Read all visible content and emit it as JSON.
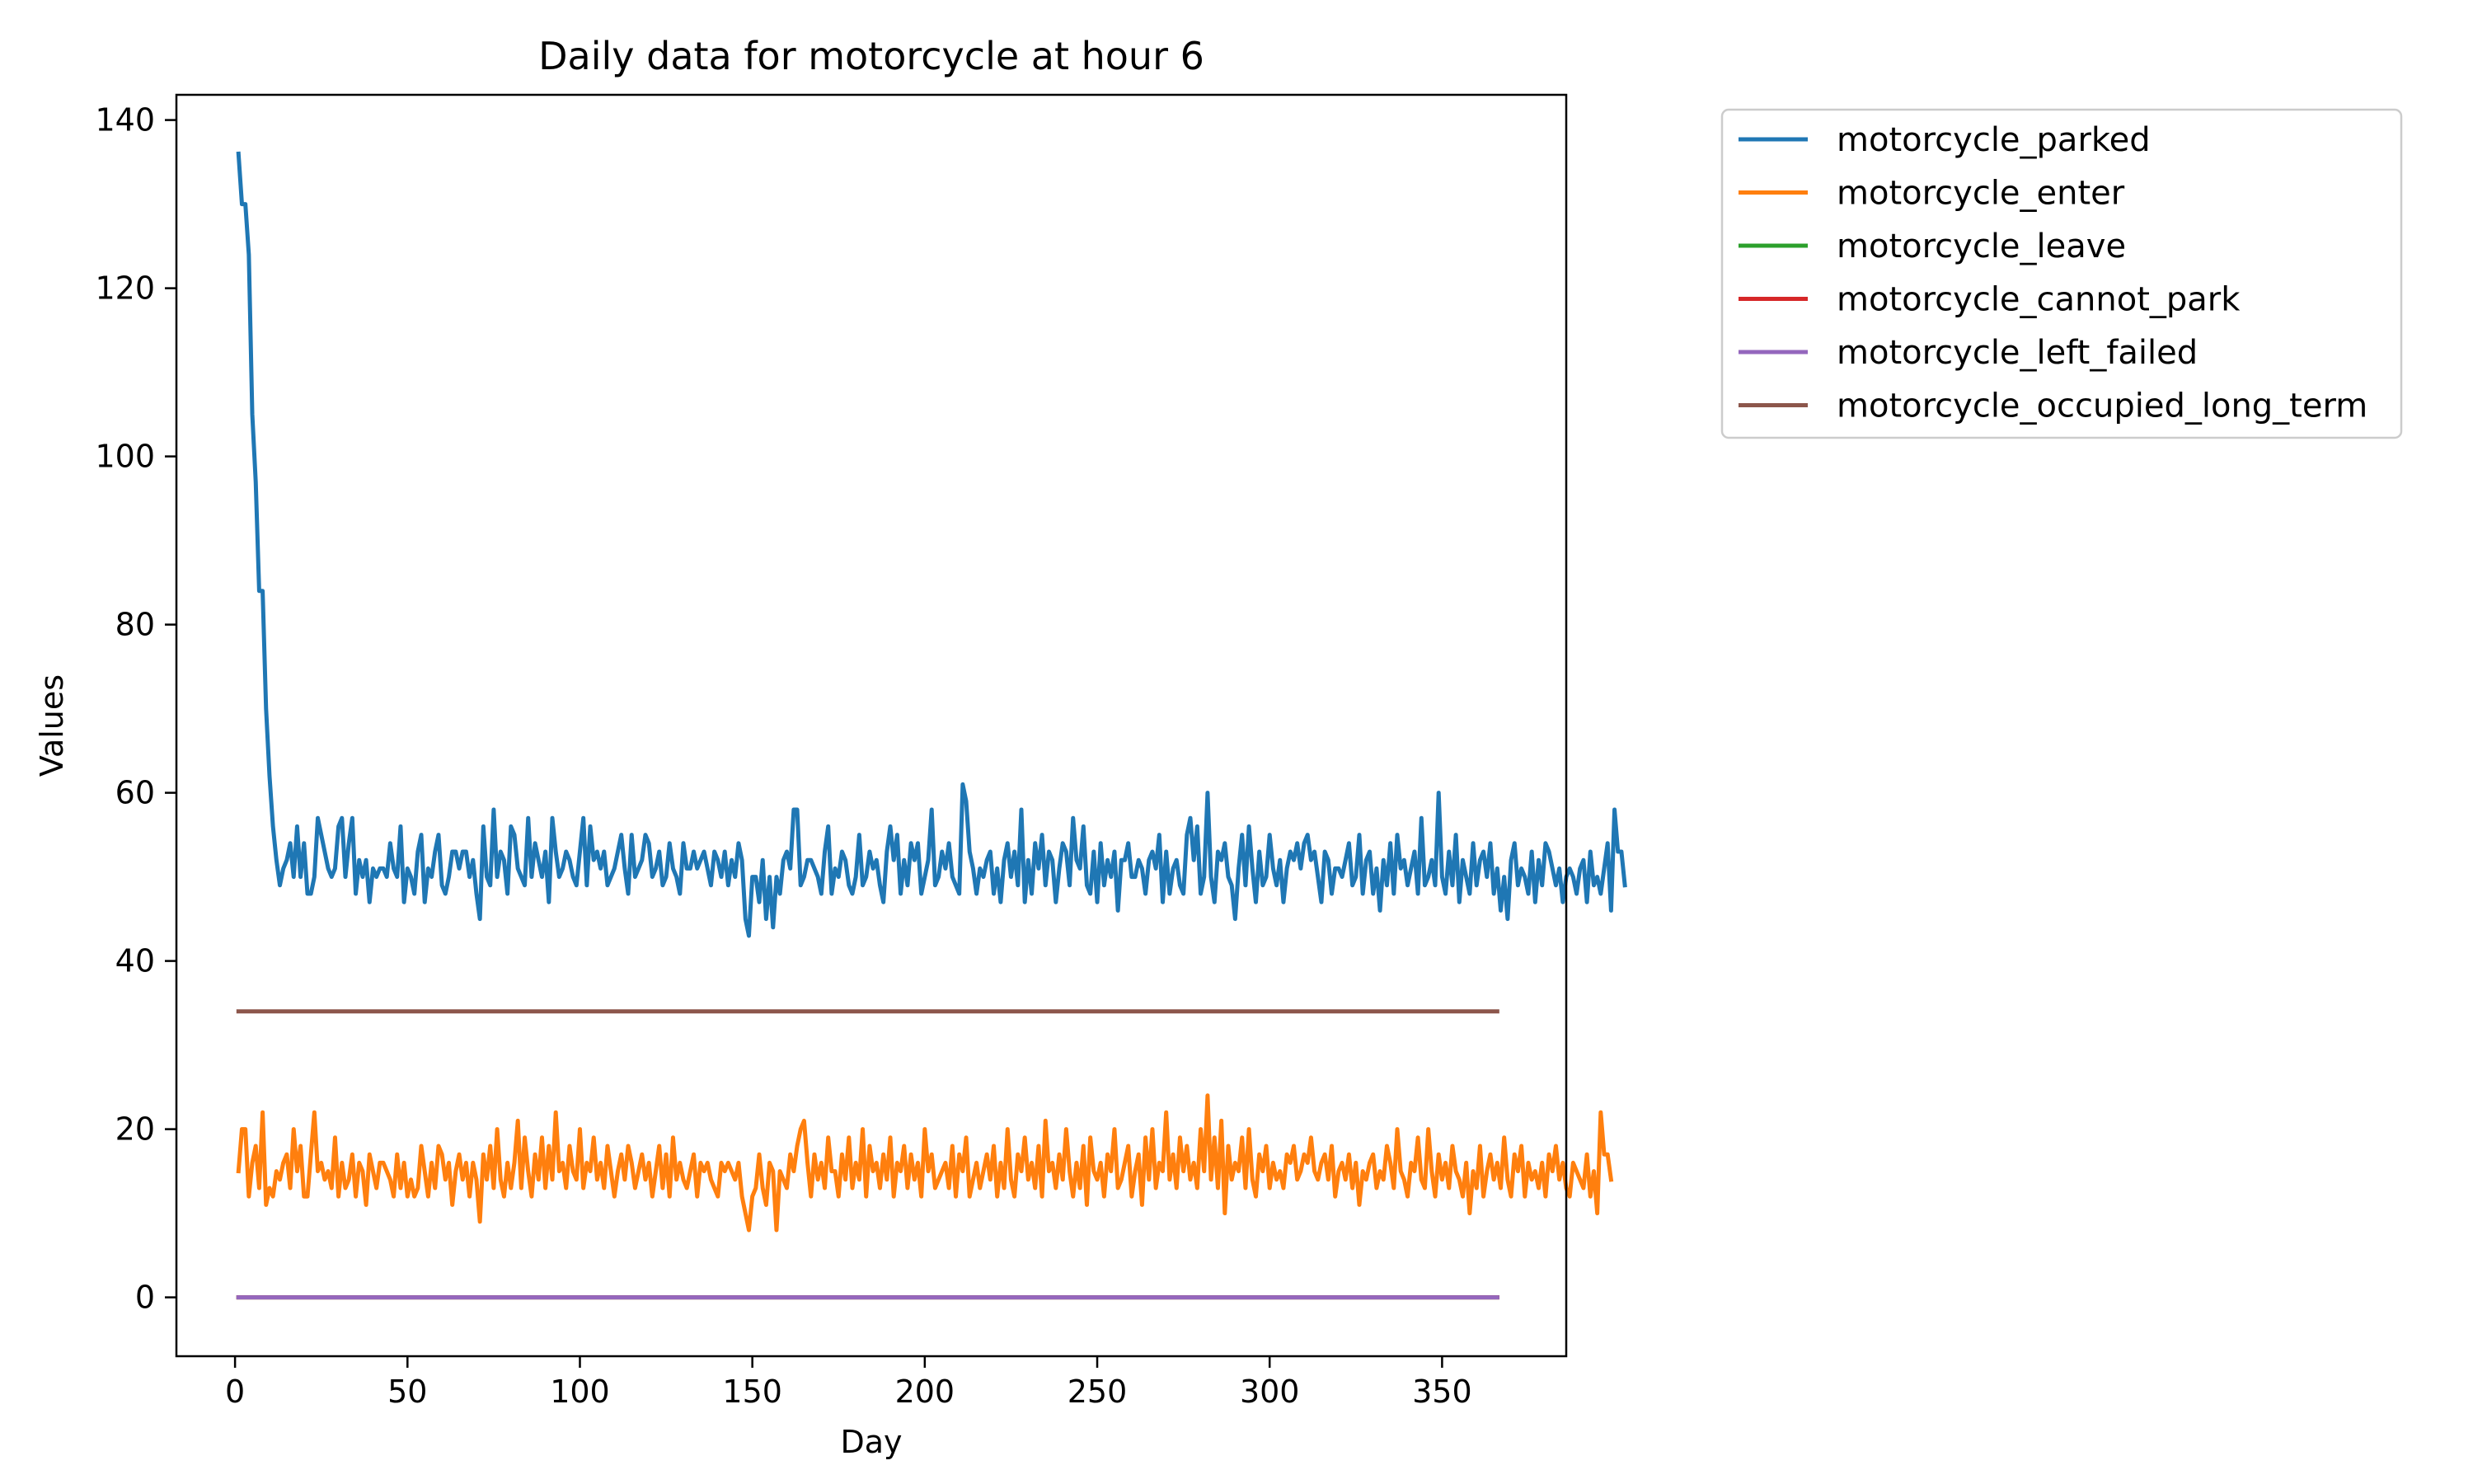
{
  "chart_data": {
    "type": "line",
    "title": "Daily data for motorcycle at hour 6",
    "xlabel": "Day",
    "ylabel": "Values",
    "xlim": [
      -17,
      386
    ],
    "ylim": [
      -7,
      143
    ],
    "xticks": [
      0,
      50,
      100,
      150,
      200,
      250,
      300,
      350
    ],
    "yticks": [
      0,
      20,
      40,
      60,
      80,
      100,
      120,
      140
    ],
    "legend_position": "outside upper right",
    "grid": false,
    "series": [
      {
        "name": "motorcycle_parked",
        "color": "#1f77b4",
        "x_start": 1,
        "values": [
          136,
          130,
          130,
          124,
          105,
          97,
          84,
          84,
          70,
          62,
          56,
          52,
          49,
          51,
          52,
          54,
          50,
          56,
          50,
          54,
          48,
          48,
          50,
          57,
          55,
          53,
          51,
          50,
          51,
          56,
          57,
          50,
          54,
          57,
          48,
          52,
          50,
          52,
          47,
          51,
          50,
          51,
          51,
          50,
          54,
          51,
          50,
          56,
          47,
          51,
          50,
          48,
          53,
          55,
          47,
          51,
          50,
          53,
          55,
          49,
          48,
          50,
          53,
          53,
          51,
          53,
          53,
          50,
          52,
          48,
          45,
          56,
          50,
          49,
          58,
          50,
          53,
          52,
          48,
          56,
          55,
          51,
          50,
          49,
          57,
          50,
          54,
          52,
          50,
          53,
          47,
          57,
          53,
          50,
          51,
          53,
          52,
          50,
          49,
          53,
          57,
          49,
          56,
          52,
          53,
          51,
          53,
          49,
          50,
          51,
          53,
          55,
          51,
          48,
          55,
          50,
          51,
          52,
          55,
          54,
          50,
          51,
          53,
          49,
          50,
          54,
          51,
          50,
          48,
          54,
          51,
          51,
          53,
          51,
          52,
          53,
          51,
          49,
          53,
          52,
          50,
          53,
          49,
          52,
          50,
          54,
          52,
          45,
          43,
          50,
          50,
          47,
          52,
          45,
          50,
          44,
          50,
          48,
          52,
          53,
          51,
          58,
          58,
          49,
          50,
          52,
          52,
          51,
          50,
          48,
          53,
          56,
          48,
          51,
          50,
          53,
          52,
          49,
          48,
          50,
          55,
          49,
          50,
          53,
          51,
          52,
          49,
          47,
          53,
          56,
          52,
          55,
          48,
          52,
          49,
          54,
          52,
          54,
          48,
          50,
          52,
          58,
          49,
          50,
          53,
          51,
          54,
          50,
          49,
          48,
          61,
          59,
          53,
          51,
          48,
          51,
          50,
          52,
          53,
          48,
          51,
          47,
          52,
          54,
          50,
          53,
          49,
          58,
          47,
          52,
          48,
          54,
          51,
          55,
          49,
          53,
          52,
          47,
          51,
          54,
          53,
          49,
          57,
          52,
          51,
          56,
          49,
          48,
          53,
          47,
          54,
          49,
          52,
          50,
          53,
          46,
          52,
          52,
          54,
          50,
          50,
          52,
          51,
          48,
          52,
          53,
          51,
          55,
          47,
          53,
          48,
          51,
          52,
          49,
          48,
          55,
          57,
          52,
          56,
          48,
          50,
          60,
          50,
          47,
          53,
          52,
          54,
          50,
          49,
          45,
          51,
          55,
          49,
          56,
          51,
          47,
          53,
          49,
          50,
          55,
          51,
          49,
          52,
          47,
          51,
          53,
          52,
          54,
          51,
          54,
          55,
          52,
          53,
          50,
          47,
          53,
          52,
          48,
          51,
          51,
          50,
          52,
          54,
          49,
          50,
          55,
          48,
          52,
          53,
          48,
          51,
          46,
          52,
          49,
          54,
          48,
          55,
          51,
          52,
          49,
          51,
          53,
          48,
          57,
          49,
          50,
          52,
          49,
          60,
          50,
          48,
          53,
          49,
          55,
          47,
          52,
          50,
          48,
          54,
          49,
          52,
          53,
          50,
          54,
          48,
          51,
          46,
          50,
          45,
          52,
          54,
          49,
          51,
          50,
          48,
          53,
          47,
          52,
          49,
          54,
          53,
          51,
          49,
          51,
          47,
          50,
          51,
          50,
          48,
          51,
          52,
          47,
          53,
          49,
          50,
          48,
          51,
          54,
          46,
          58,
          53,
          53,
          49
        ]
      },
      {
        "name": "motorcycle_enter",
        "color": "#ff7f0e",
        "x_start": 1,
        "values": [
          15,
          20,
          20,
          12,
          16,
          18,
          13,
          22,
          11,
          13,
          12,
          15,
          14,
          16,
          17,
          13,
          20,
          15,
          18,
          12,
          12,
          17,
          22,
          15,
          16,
          14,
          15,
          13,
          19,
          12,
          16,
          13,
          14,
          17,
          12,
          16,
          15,
          11,
          17,
          15,
          13,
          16,
          16,
          15,
          14,
          12,
          17,
          13,
          16,
          12,
          14,
          12,
          13,
          18,
          15,
          12,
          16,
          13,
          18,
          17,
          14,
          16,
          11,
          15,
          17,
          14,
          16,
          12,
          16,
          14,
          9,
          17,
          14,
          18,
          13,
          20,
          14,
          12,
          16,
          13,
          16,
          21,
          13,
          19,
          15,
          12,
          17,
          14,
          19,
          13,
          18,
          14,
          22,
          15,
          16,
          13,
          18,
          15,
          14,
          20,
          13,
          16,
          15,
          19,
          14,
          16,
          13,
          18,
          15,
          12,
          15,
          17,
          14,
          18,
          16,
          13,
          15,
          17,
          14,
          16,
          12,
          15,
          18,
          13,
          17,
          12,
          19,
          14,
          16,
          14,
          13,
          15,
          17,
          12,
          16,
          15,
          16,
          14,
          13,
          12,
          16,
          15,
          16,
          15,
          14,
          16,
          12,
          10,
          8,
          12,
          13,
          17,
          13,
          11,
          16,
          15,
          8,
          15,
          14,
          13,
          17,
          15,
          18,
          20,
          21,
          16,
          12,
          17,
          14,
          16,
          13,
          19,
          15,
          15,
          12,
          17,
          14,
          19,
          13,
          16,
          14,
          20,
          12,
          18,
          15,
          16,
          13,
          17,
          14,
          19,
          12,
          16,
          15,
          18,
          13,
          17,
          14,
          16,
          12,
          20,
          15,
          17,
          13,
          14,
          15,
          16,
          13,
          18,
          12,
          17,
          15,
          19,
          12,
          14,
          16,
          13,
          15,
          17,
          14,
          18,
          12,
          16,
          13,
          20,
          14,
          12,
          17,
          15,
          19,
          14,
          16,
          13,
          18,
          12,
          21,
          15,
          16,
          13,
          17,
          14,
          20,
          15,
          12,
          16,
          13,
          18,
          11,
          19,
          15,
          14,
          16,
          12,
          17,
          15,
          20,
          13,
          14,
          16,
          18,
          12,
          15,
          17,
          11,
          19,
          14,
          20,
          13,
          16,
          15,
          22,
          14,
          17,
          13,
          19,
          15,
          18,
          14,
          16,
          13,
          20,
          15,
          24,
          14,
          19,
          13,
          21,
          10,
          18,
          14,
          16,
          15,
          19,
          13,
          20,
          14,
          12,
          17,
          15,
          18,
          13,
          16,
          14,
          15,
          13,
          17,
          16,
          18,
          14,
          15,
          17,
          16,
          19,
          15,
          14,
          16,
          17,
          14,
          18,
          12,
          15,
          16,
          14,
          17,
          13,
          16,
          11,
          15,
          14,
          16,
          17,
          13,
          15,
          14,
          18,
          16,
          13,
          20,
          15,
          14,
          12,
          16,
          15,
          19,
          14,
          13,
          20,
          15,
          12,
          17,
          14,
          16,
          13,
          18,
          15,
          14,
          12,
          16,
          10,
          15,
          13,
          18,
          12,
          15,
          17,
          14,
          16,
          13,
          19,
          14,
          12,
          17,
          15,
          18,
          12,
          16,
          14,
          15,
          13,
          16,
          12,
          17,
          15,
          18,
          14,
          16,
          13,
          12,
          16,
          15,
          14,
          13,
          17,
          12,
          15,
          10,
          22,
          17,
          17,
          14
        ]
      },
      {
        "name": "motorcycle_leave",
        "color": "#2ca02c",
        "x_range": [
          1,
          366
        ],
        "constant": 0
      },
      {
        "name": "motorcycle_cannot_park",
        "color": "#d62728",
        "x_range": [
          1,
          366
        ],
        "constant": 0
      },
      {
        "name": "motorcycle_left_failed",
        "color": "#9467bd",
        "x_range": [
          1,
          366
        ],
        "constant": 0
      },
      {
        "name": "motorcycle_occupied_long_term",
        "color": "#8c564b",
        "x_range": [
          1,
          366
        ],
        "constant": 34
      }
    ]
  }
}
